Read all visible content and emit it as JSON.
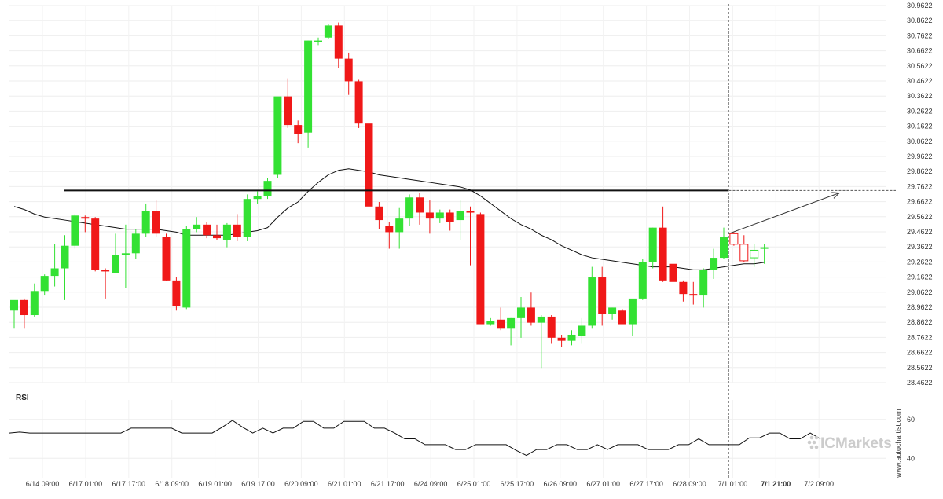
{
  "chart_data": [
    {
      "type": "candlestick",
      "title": "",
      "ylim": [
        28.4622,
        30.9622
      ],
      "y_tick_labels": [
        "30.9622",
        "30.8622",
        "30.7622",
        "30.6622",
        "30.5622",
        "30.4622",
        "30.3622",
        "30.2622",
        "30.1622",
        "30.0622",
        "29.9622",
        "29.8622",
        "29.7622",
        "29.6622",
        "29.5622",
        "29.4622",
        "29.3622",
        "29.2622",
        "29.1622",
        "29.0622",
        "28.9622",
        "28.8622",
        "28.7622",
        "28.6622",
        "28.5622",
        "28.4622"
      ],
      "x_tick_labels": [
        {
          "label": "6/14 09:00",
          "bold": false
        },
        {
          "label": "6/17 01:00",
          "bold": false
        },
        {
          "label": "6/17 17:00",
          "bold": false
        },
        {
          "label": "6/18 09:00",
          "bold": false
        },
        {
          "label": "6/19 01:00",
          "bold": false
        },
        {
          "label": "6/19 17:00",
          "bold": false
        },
        {
          "label": "6/20 09:00",
          "bold": false
        },
        {
          "label": "6/21 01:00",
          "bold": false
        },
        {
          "label": "6/21 17:00",
          "bold": false
        },
        {
          "label": "6/24 09:00",
          "bold": false
        },
        {
          "label": "6/25 01:00",
          "bold": false
        },
        {
          "label": "6/25 17:00",
          "bold": false
        },
        {
          "label": "6/26 09:00",
          "bold": false
        },
        {
          "label": "6/27 01:00",
          "bold": false
        },
        {
          "label": "6/27 17:00",
          "bold": false
        },
        {
          "label": "6/28 09:00",
          "bold": false
        },
        {
          "label": "7/1 01:00",
          "bold": false
        },
        {
          "label": "7/1 21:00",
          "bold": true
        },
        {
          "label": "7/2 09:00",
          "bold": false
        }
      ],
      "up_color": "#33e133",
      "down_color": "#f01818",
      "candles": [
        {
          "o": 28.94,
          "h": 29.0,
          "l": 28.82,
          "c": 29.01
        },
        {
          "o": 29.01,
          "h": 29.02,
          "l": 28.82,
          "c": 28.91
        },
        {
          "o": 28.91,
          "h": 29.12,
          "l": 28.9,
          "c": 29.07
        },
        {
          "o": 29.07,
          "h": 29.18,
          "l": 29.04,
          "c": 29.17
        },
        {
          "o": 29.17,
          "h": 29.38,
          "l": 29.1,
          "c": 29.22
        },
        {
          "o": 29.22,
          "h": 29.44,
          "l": 29.01,
          "c": 29.37
        },
        {
          "o": 29.37,
          "h": 29.58,
          "l": 29.35,
          "c": 29.57
        },
        {
          "o": 29.56,
          "h": 29.57,
          "l": 29.46,
          "c": 29.55
        },
        {
          "o": 29.55,
          "h": 29.56,
          "l": 29.2,
          "c": 29.21
        },
        {
          "o": 29.21,
          "h": 29.22,
          "l": 29.02,
          "c": 29.2
        },
        {
          "o": 29.19,
          "h": 29.45,
          "l": 29.19,
          "c": 29.31
        },
        {
          "o": 29.31,
          "h": 29.51,
          "l": 29.09,
          "c": 29.32
        },
        {
          "o": 29.32,
          "h": 29.48,
          "l": 29.28,
          "c": 29.45
        },
        {
          "o": 29.45,
          "h": 29.65,
          "l": 29.43,
          "c": 29.6
        },
        {
          "o": 29.6,
          "h": 29.67,
          "l": 29.43,
          "c": 29.45
        },
        {
          "o": 29.43,
          "h": 29.45,
          "l": 29.14,
          "c": 29.14
        },
        {
          "o": 29.14,
          "h": 29.16,
          "l": 28.94,
          "c": 28.97
        },
        {
          "o": 28.96,
          "h": 29.5,
          "l": 28.95,
          "c": 29.48
        },
        {
          "o": 29.48,
          "h": 29.56,
          "l": 29.46,
          "c": 29.51
        },
        {
          "o": 29.51,
          "h": 29.53,
          "l": 29.42,
          "c": 29.44
        },
        {
          "o": 29.44,
          "h": 29.51,
          "l": 29.41,
          "c": 29.42
        },
        {
          "o": 29.41,
          "h": 29.52,
          "l": 29.36,
          "c": 29.51
        },
        {
          "o": 29.51,
          "h": 29.58,
          "l": 29.4,
          "c": 29.43
        },
        {
          "o": 29.43,
          "h": 29.71,
          "l": 29.4,
          "c": 29.68
        },
        {
          "o": 29.68,
          "h": 29.73,
          "l": 29.65,
          "c": 29.7
        },
        {
          "o": 29.7,
          "h": 29.82,
          "l": 29.68,
          "c": 29.8
        },
        {
          "o": 29.84,
          "h": 30.34,
          "l": 29.82,
          "c": 30.36
        },
        {
          "o": 30.36,
          "h": 30.48,
          "l": 30.15,
          "c": 30.17
        },
        {
          "o": 30.17,
          "h": 30.2,
          "l": 30.05,
          "c": 30.11
        },
        {
          "o": 30.12,
          "h": 30.73,
          "l": 30.02,
          "c": 30.73
        },
        {
          "o": 30.73,
          "h": 30.75,
          "l": 30.7,
          "c": 30.73
        },
        {
          "o": 30.75,
          "h": 30.84,
          "l": 30.74,
          "c": 30.83
        },
        {
          "o": 30.83,
          "h": 30.85,
          "l": 30.55,
          "c": 30.61
        },
        {
          "o": 30.61,
          "h": 30.65,
          "l": 30.37,
          "c": 30.46
        },
        {
          "o": 30.46,
          "h": 30.47,
          "l": 30.15,
          "c": 30.18
        },
        {
          "o": 30.18,
          "h": 30.21,
          "l": 29.62,
          "c": 29.63
        },
        {
          "o": 29.63,
          "h": 29.66,
          "l": 29.48,
          "c": 29.54
        },
        {
          "o": 29.5,
          "h": 29.53,
          "l": 29.35,
          "c": 29.46
        },
        {
          "o": 29.46,
          "h": 29.62,
          "l": 29.35,
          "c": 29.55
        },
        {
          "o": 29.55,
          "h": 29.71,
          "l": 29.5,
          "c": 29.69
        },
        {
          "o": 29.69,
          "h": 29.72,
          "l": 29.51,
          "c": 29.59
        },
        {
          "o": 29.59,
          "h": 29.67,
          "l": 29.45,
          "c": 29.55
        },
        {
          "o": 29.55,
          "h": 29.61,
          "l": 29.52,
          "c": 29.59
        },
        {
          "o": 29.59,
          "h": 29.61,
          "l": 29.47,
          "c": 29.53
        },
        {
          "o": 29.54,
          "h": 29.67,
          "l": 29.41,
          "c": 29.6
        },
        {
          "o": 29.6,
          "h": 29.63,
          "l": 29.24,
          "c": 29.59
        },
        {
          "o": 29.58,
          "h": 29.59,
          "l": 28.85,
          "c": 28.85
        },
        {
          "o": 28.85,
          "h": 28.89,
          "l": 28.84,
          "c": 28.87
        },
        {
          "o": 28.88,
          "h": 28.96,
          "l": 28.81,
          "c": 28.82
        },
        {
          "o": 28.82,
          "h": 28.89,
          "l": 28.71,
          "c": 28.89
        },
        {
          "o": 28.89,
          "h": 29.03,
          "l": 28.76,
          "c": 28.96
        },
        {
          "o": 28.96,
          "h": 29.06,
          "l": 28.84,
          "c": 28.86
        },
        {
          "o": 28.86,
          "h": 28.91,
          "l": 28.56,
          "c": 28.9
        },
        {
          "o": 28.9,
          "h": 28.91,
          "l": 28.72,
          "c": 28.76
        },
        {
          "o": 28.76,
          "h": 28.78,
          "l": 28.7,
          "c": 28.74
        },
        {
          "o": 28.74,
          "h": 28.81,
          "l": 28.71,
          "c": 28.78
        },
        {
          "o": 28.77,
          "h": 28.89,
          "l": 28.72,
          "c": 28.84
        },
        {
          "o": 28.84,
          "h": 29.23,
          "l": 28.82,
          "c": 29.16
        },
        {
          "o": 29.16,
          "h": 29.23,
          "l": 28.84,
          "c": 28.92
        },
        {
          "o": 28.92,
          "h": 28.96,
          "l": 28.88,
          "c": 28.96
        },
        {
          "o": 28.94,
          "h": 28.95,
          "l": 28.86,
          "c": 28.85
        },
        {
          "o": 28.85,
          "h": 29.0,
          "l": 28.77,
          "c": 29.02
        },
        {
          "o": 29.02,
          "h": 29.28,
          "l": 29.01,
          "c": 29.26
        },
        {
          "o": 29.26,
          "h": 29.49,
          "l": 29.22,
          "c": 29.49
        },
        {
          "o": 29.49,
          "h": 29.63,
          "l": 29.13,
          "c": 29.14
        },
        {
          "o": 29.25,
          "h": 29.28,
          "l": 29.08,
          "c": 29.13
        },
        {
          "o": 29.13,
          "h": 29.14,
          "l": 29.0,
          "c": 29.05
        },
        {
          "o": 29.05,
          "h": 29.13,
          "l": 28.98,
          "c": 29.04
        },
        {
          "o": 29.04,
          "h": 29.22,
          "l": 28.96,
          "c": 29.21
        },
        {
          "o": 29.21,
          "h": 29.35,
          "l": 29.15,
          "c": 29.29
        },
        {
          "o": 29.29,
          "h": 29.49,
          "l": 29.28,
          "c": 29.43
        },
        {
          "o": 29.45,
          "h": 29.46,
          "l": 29.37,
          "c": 29.38,
          "hollow": true
        },
        {
          "o": 29.38,
          "h": 29.44,
          "l": 29.26,
          "c": 29.27,
          "hollow": true
        },
        {
          "o": 29.29,
          "h": 29.38,
          "l": 29.23,
          "c": 29.34,
          "hollow": true
        },
        {
          "o": 29.35,
          "h": 29.38,
          "l": 29.25,
          "c": 29.36
        }
      ],
      "moving_average": [
        29.63,
        29.61,
        29.58,
        29.56,
        29.55,
        29.54,
        29.53,
        29.52,
        29.51,
        29.5,
        29.49,
        29.48,
        29.48,
        29.48,
        29.48,
        29.47,
        29.46,
        29.44,
        29.44,
        29.44,
        29.44,
        29.44,
        29.45,
        29.46,
        29.47,
        29.49,
        29.56,
        29.62,
        29.66,
        29.73,
        29.79,
        29.84,
        29.87,
        29.88,
        29.87,
        29.86,
        29.84,
        29.83,
        29.82,
        29.81,
        29.8,
        29.79,
        29.78,
        29.77,
        29.76,
        29.74,
        29.7,
        29.65,
        29.6,
        29.55,
        29.51,
        29.48,
        29.44,
        29.41,
        29.37,
        29.34,
        29.31,
        29.29,
        29.28,
        29.27,
        29.26,
        29.25,
        29.24,
        29.23,
        29.23,
        29.23,
        29.22,
        29.21,
        29.21,
        29.22,
        29.23,
        29.24,
        29.25,
        29.25,
        29.26
      ],
      "resistance_level": 29.7362,
      "projection": {
        "from": {
          "candle": 70.5,
          "value": 29.45
        },
        "to": {
          "candle": 81.4,
          "value": 29.72
        }
      },
      "current_time_marker": {
        "label": "7/1 21:00",
        "candle": 70.5
      }
    },
    {
      "type": "line",
      "title": "RSI",
      "ylim": [
        30,
        70
      ],
      "y_tick_labels": [
        "60",
        "40"
      ],
      "y_tick_values": [
        60,
        40
      ],
      "values": [
        53,
        53.5,
        53,
        53,
        53,
        53,
        53,
        53,
        53,
        53,
        53,
        53,
        55.5,
        55.5,
        55.5,
        55.5,
        55.5,
        53,
        53,
        53,
        53,
        56,
        59.5,
        56,
        53,
        55.5,
        53,
        55.5,
        55.5,
        59,
        59,
        55.5,
        55.5,
        59,
        59,
        59,
        55.5,
        55.5,
        53,
        50,
        50,
        47,
        47,
        47,
        44.5,
        44.5,
        47,
        47,
        47,
        47,
        44,
        41.5,
        44.5,
        44.5,
        47,
        47,
        44.5,
        44.5,
        47,
        44.5,
        47,
        47,
        47,
        44.5,
        44.5,
        44.5,
        47,
        47,
        50,
        47,
        47,
        47,
        47,
        50.5,
        50.5,
        53,
        53,
        50,
        50,
        53,
        50
      ]
    }
  ],
  "brand": {
    "name": "ICMarkets",
    "color": "#cccccc"
  },
  "watermark": "www.autochartist.com"
}
